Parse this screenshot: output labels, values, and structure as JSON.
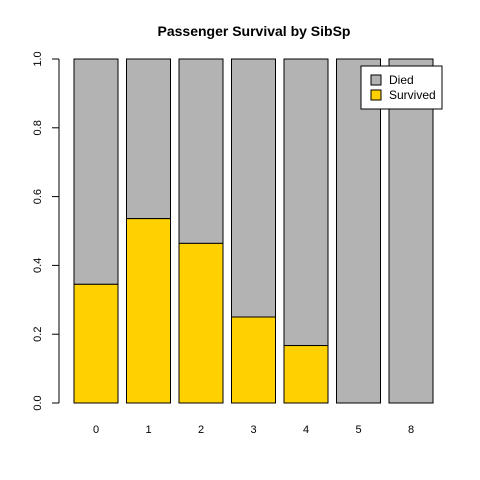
{
  "chart_data": {
    "type": "bar",
    "stacked": true,
    "title": "Passenger Survival by SibSp",
    "xlabel": "",
    "ylabel": "",
    "categories": [
      "0",
      "1",
      "2",
      "3",
      "4",
      "5",
      "8"
    ],
    "series": [
      {
        "name": "Survived",
        "color": "#FFD100",
        "values": [
          0.345,
          0.536,
          0.464,
          0.25,
          0.167,
          0.0,
          0.0
        ]
      },
      {
        "name": "Died",
        "color": "#B3B3B3",
        "values": [
          0.655,
          0.464,
          0.536,
          0.75,
          0.833,
          1.0,
          1.0
        ]
      }
    ],
    "ylim": [
      0,
      1
    ],
    "yticks": [
      "0.0",
      "0.2",
      "0.4",
      "0.6",
      "0.8",
      "1.0"
    ],
    "grid": false,
    "legend": {
      "position": "top-right",
      "entries": [
        {
          "label": "Died",
          "color": "#B3B3B3"
        },
        {
          "label": "Survived",
          "color": "#FFD100"
        }
      ]
    }
  }
}
